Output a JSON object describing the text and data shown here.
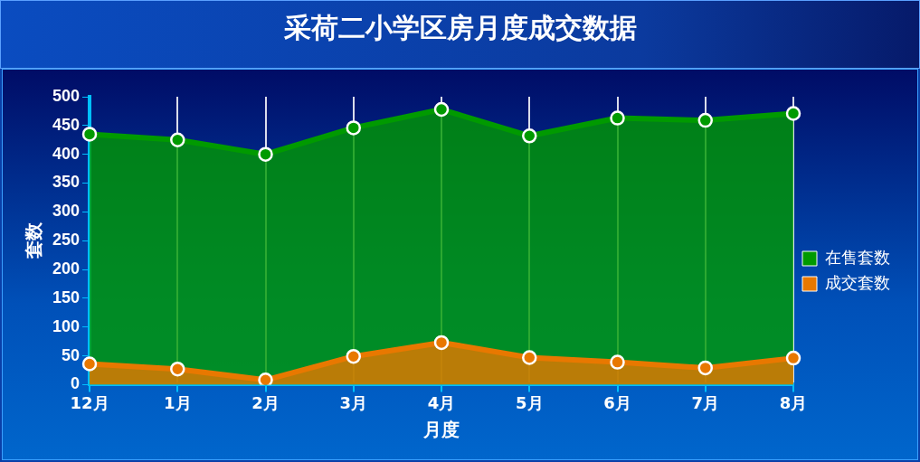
{
  "chart_data": {
    "type": "area",
    "title": "采荷二小学区房月度成交数据",
    "xlabel": "月度",
    "ylabel": "套数",
    "categories": [
      "12月",
      "1月",
      "2月",
      "3月",
      "4月",
      "5月",
      "6月",
      "7月",
      "8月"
    ],
    "series": [
      {
        "name": "在售套数",
        "color": "#009a00",
        "values": [
          435,
          425,
          400,
          446,
          478,
          432,
          463,
          459,
          471
        ]
      },
      {
        "name": "成交套数",
        "color": "#e87800",
        "values": [
          36,
          27,
          8,
          49,
          73,
          47,
          39,
          29,
          46
        ]
      }
    ],
    "ylim": [
      0,
      500
    ],
    "yticks": [
      0,
      50,
      100,
      150,
      200,
      250,
      300,
      350,
      400,
      450,
      500
    ],
    "grid": "x",
    "legend": "right",
    "marker": "circle"
  }
}
